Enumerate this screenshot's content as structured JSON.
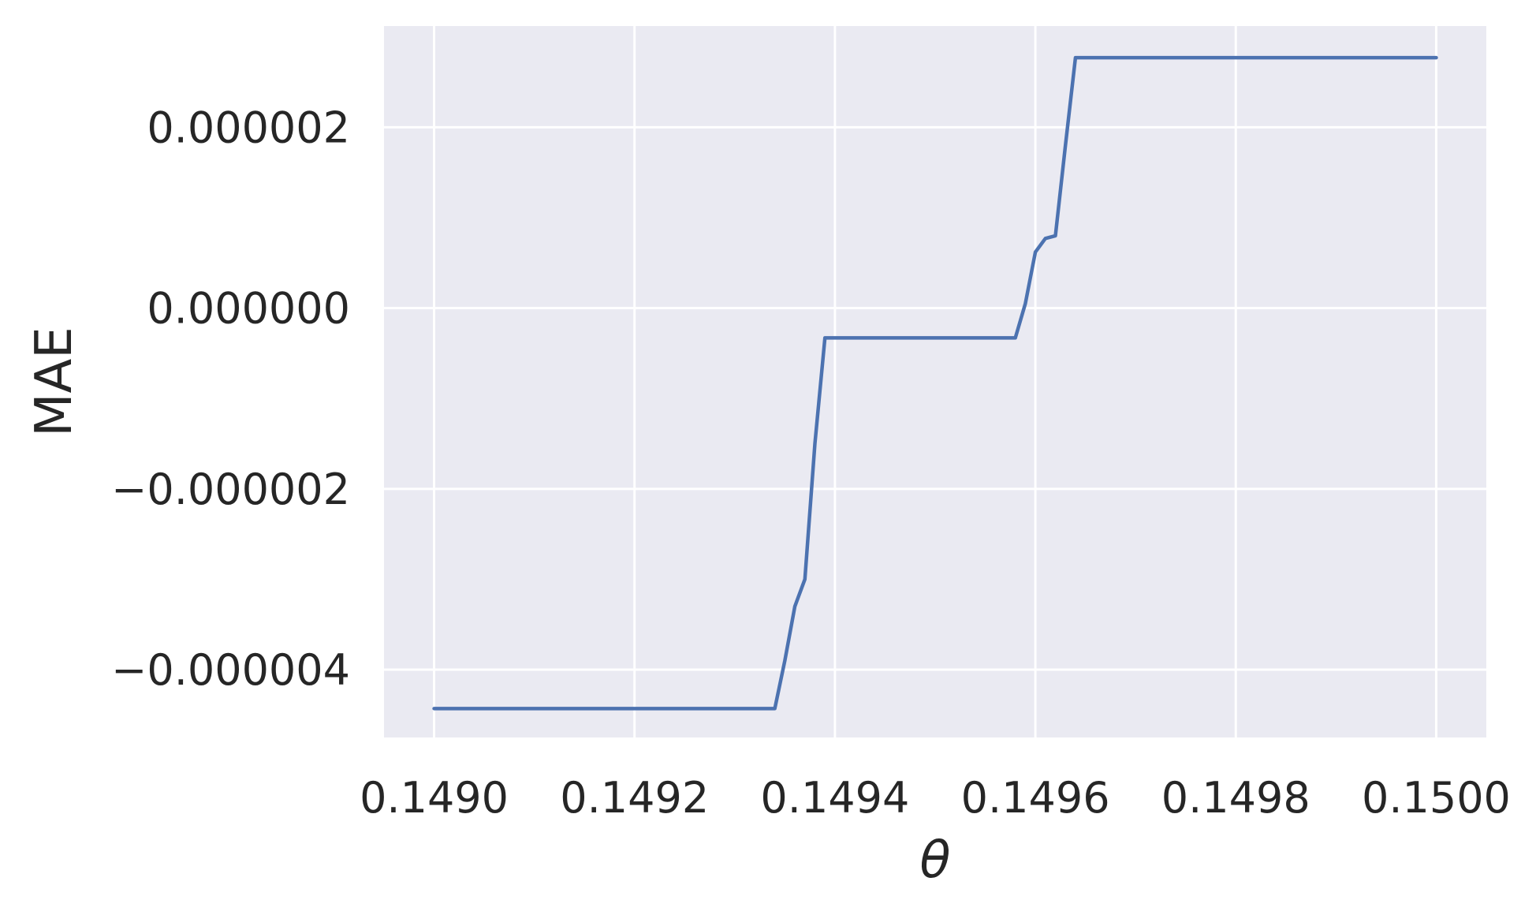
{
  "chart_data": {
    "type": "line",
    "title": "",
    "xlabel": "θ",
    "ylabel": "MAE",
    "xlim": [
      0.14895,
      0.15005
    ],
    "ylim": [
      -4.75e-06,
      3.12e-06
    ],
    "xticks": [
      0.149,
      0.1492,
      0.1494,
      0.1496,
      0.1498,
      0.15
    ],
    "xtick_labels": [
      "0.1490",
      "0.1492",
      "0.1494",
      "0.1496",
      "0.1498",
      "0.1500"
    ],
    "yticks": [
      2e-06,
      0.0,
      -2e-06,
      -4e-06
    ],
    "ytick_labels": [
      "0.000002",
      "0.000000",
      "−0.000002",
      "−0.000004"
    ],
    "grid": true,
    "legend": "none",
    "series": [
      {
        "x": [
          0.149,
          0.1491,
          0.1492,
          0.1493,
          0.14934,
          0.14935,
          0.14936,
          0.14937,
          0.14938,
          0.14939,
          0.1494,
          0.14945,
          0.1495,
          0.14955,
          0.14958,
          0.14959,
          0.1496,
          0.14961,
          0.14962,
          0.14963,
          0.14964,
          0.1497,
          0.1498,
          0.1499,
          0.15
        ],
        "y": [
          -4.43e-06,
          -4.43e-06,
          -4.43e-06,
          -4.43e-06,
          -4.43e-06,
          -3.9e-06,
          -3.3e-06,
          -3e-06,
          -1.5e-06,
          -3.3e-07,
          -3.3e-07,
          -3.3e-07,
          -3.3e-07,
          -3.3e-07,
          -3.3e-07,
          5e-08,
          6.2e-07,
          7.7e-07,
          8e-07,
          1.8e-06,
          2.77e-06,
          2.77e-06,
          2.77e-06,
          2.77e-06,
          2.77e-06
        ]
      }
    ]
  },
  "colors": {
    "background": "#ffffff",
    "plot_background": "#eaeaf2",
    "grid": "#ffffff",
    "line": "#4c72b0",
    "text": "#262626"
  }
}
